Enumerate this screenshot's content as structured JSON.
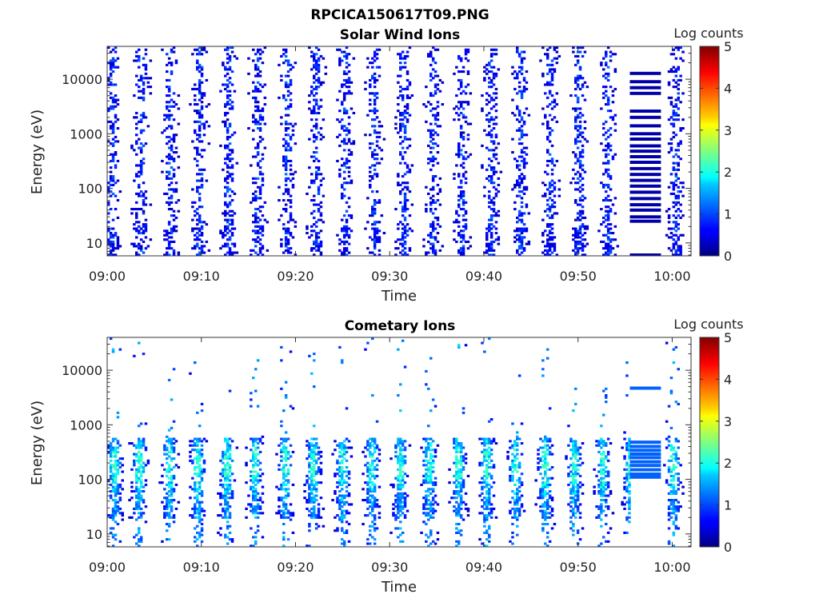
{
  "figure_title": "RPCICA150617T09.PNG",
  "chart_data": [
    {
      "type": "heatmap",
      "title": "Solar Wind Ions",
      "xlabel": "Time",
      "ylabel": "Energy (eV)",
      "x_ticks": [
        "09:00",
        "09:10",
        "09:20",
        "09:30",
        "09:40",
        "09:50",
        "10:00"
      ],
      "x_range_minutes": [
        0,
        62
      ],
      "y_scale": "log",
      "y_ticks": [
        {
          "value": 10,
          "label": "10"
        },
        {
          "value": 100,
          "label": "100"
        },
        {
          "value": 1000,
          "label": "1000"
        },
        {
          "value": 10000,
          "label": "10000"
        }
      ],
      "y_range_eV": [
        5.8,
        40000
      ],
      "colorbar": {
        "label": "Log counts",
        "min": 0,
        "max": 5,
        "ticks": [
          "0",
          "1",
          "2",
          "3",
          "4",
          "5"
        ],
        "colormap": "jet"
      },
      "sweep_centers_minutes": [
        0.5,
        3.6,
        6.7,
        9.8,
        12.9,
        16.0,
        19.1,
        22.2,
        25.3,
        28.4,
        31.5,
        34.6,
        37.7,
        40.8,
        43.9,
        47.0,
        50.1,
        53.2,
        60.4
      ],
      "typical_level_log_counts": 0.3,
      "level_range_log_counts": [
        0,
        2
      ],
      "constant_line_segment": {
        "start_minutes": 55.5,
        "end_minutes": 58.8,
        "energies_eV": [
          12800,
          9000,
          7000,
          5500,
          2600,
          2000,
          1400,
          1000,
          800,
          600,
          480,
          380,
          300,
          230,
          180,
          140,
          110,
          85,
          65,
          50,
          40,
          30,
          25,
          6
        ],
        "level_log_counts": 0.2
      }
    },
    {
      "type": "heatmap",
      "title": "Cometary Ions",
      "xlabel": "Time",
      "ylabel": "Energy (eV)",
      "x_ticks": [
        "09:00",
        "09:10",
        "09:20",
        "09:30",
        "09:40",
        "09:50",
        "10:00"
      ],
      "x_range_minutes": [
        0,
        62
      ],
      "y_scale": "log",
      "y_ticks": [
        {
          "value": 10,
          "label": "10"
        },
        {
          "value": 100,
          "label": "100"
        },
        {
          "value": 1000,
          "label": "1000"
        },
        {
          "value": 10000,
          "label": "10000"
        }
      ],
      "y_range_eV": [
        5.8,
        40000
      ],
      "colorbar": {
        "label": "Log counts",
        "min": 0,
        "max": 5,
        "ticks": [
          "0",
          "1",
          "2",
          "3",
          "4",
          "5"
        ],
        "colormap": "jet"
      },
      "sweep_centers_minutes": [
        0.8,
        3.4,
        6.6,
        9.6,
        12.7,
        15.7,
        18.9,
        21.9,
        25.0,
        28.1,
        31.1,
        34.2,
        37.3,
        40.3,
        43.4,
        46.5,
        49.6,
        52.6,
        55.6,
        60.1
      ],
      "typical_level_log_counts": 1.2,
      "level_range_log_counts": [
        0.3,
        2.2
      ],
      "peak_energy_band_eV": [
        20,
        600
      ],
      "constant_line_segment": {
        "start_minutes": 55.5,
        "end_minutes": 58.8,
        "energies_eV": [
          4700,
          480,
          400,
          340,
          290,
          250,
          210,
          180,
          150,
          125,
          110
        ],
        "level_log_counts": 1.1
      }
    }
  ]
}
